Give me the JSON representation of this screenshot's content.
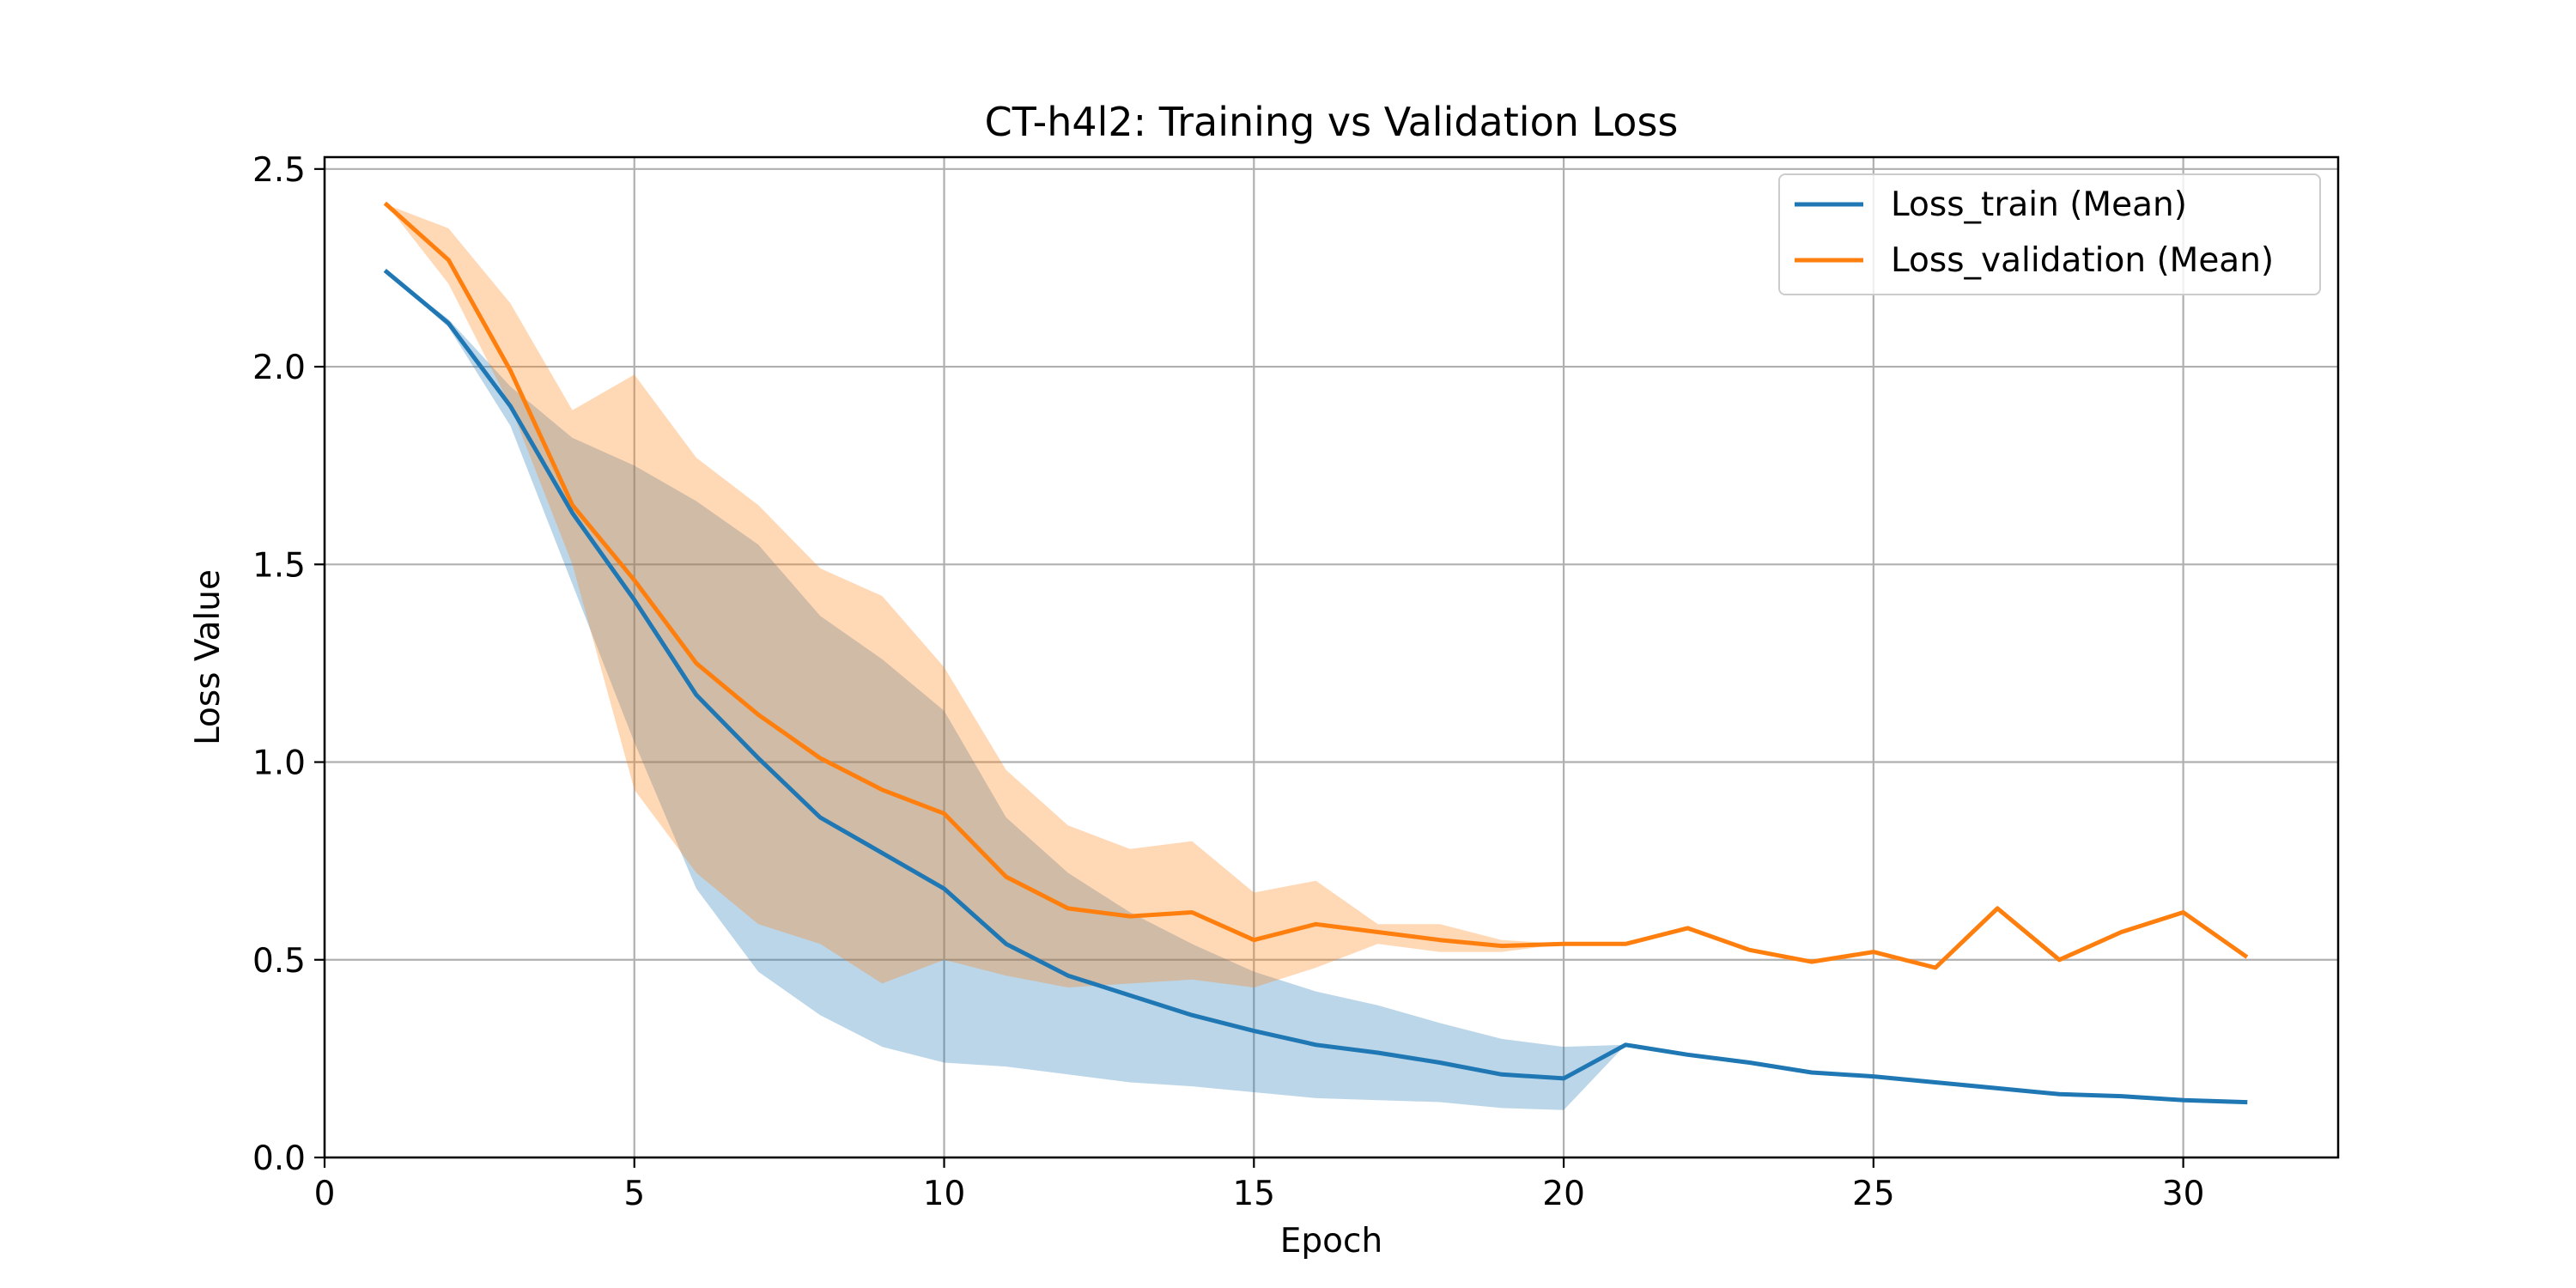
{
  "chart_data": {
    "type": "line",
    "title": "CT-h4l2: Training vs Validation Loss",
    "xlabel": "Epoch",
    "ylabel": "Loss Value",
    "xlim": [
      0,
      32.5
    ],
    "ylim": [
      0,
      2.53
    ],
    "xticks": [
      0,
      5,
      10,
      15,
      20,
      25,
      30
    ],
    "yticks": [
      0.0,
      0.5,
      1.0,
      1.5,
      2.0,
      2.5
    ],
    "xtick_labels": [
      "0",
      "5",
      "10",
      "15",
      "20",
      "25",
      "30"
    ],
    "ytick_labels": [
      "0.0",
      "0.5",
      "1.0",
      "1.5",
      "2.0",
      "2.5"
    ],
    "grid": true,
    "legend_position": "top-right",
    "series": [
      {
        "name": "Loss_train (Mean)",
        "color": "#1f77b4",
        "x": [
          1,
          2,
          3,
          4,
          5,
          6,
          7,
          8,
          9,
          10,
          11,
          12,
          13,
          14,
          15,
          16,
          17,
          18,
          19,
          20,
          21,
          22,
          23,
          24,
          25,
          26,
          27,
          28,
          29,
          30,
          31
        ],
        "values": [
          2.24,
          2.11,
          1.9,
          1.63,
          1.41,
          1.17,
          1.01,
          0.86,
          0.77,
          0.68,
          0.54,
          0.46,
          0.41,
          0.36,
          0.32,
          0.285,
          0.265,
          0.24,
          0.21,
          0.2,
          0.285,
          0.26,
          0.24,
          0.215,
          0.205,
          0.19,
          0.175,
          0.16,
          0.155,
          0.145,
          0.14
        ],
        "band_lower": [
          2.24,
          2.1,
          1.85,
          1.45,
          1.05,
          0.68,
          0.47,
          0.36,
          0.28,
          0.24,
          0.23,
          0.21,
          0.19,
          0.18,
          0.165,
          0.15,
          0.145,
          0.14,
          0.125,
          0.12,
          0.285
        ],
        "band_upper": [
          2.24,
          2.12,
          1.95,
          1.82,
          1.75,
          1.66,
          1.55,
          1.37,
          1.26,
          1.13,
          0.86,
          0.72,
          0.62,
          0.54,
          0.47,
          0.42,
          0.385,
          0.34,
          0.3,
          0.28,
          0.285
        ]
      },
      {
        "name": "Loss_validation (Mean)",
        "color": "#ff7f0e",
        "x": [
          1,
          2,
          3,
          4,
          5,
          6,
          7,
          8,
          9,
          10,
          11,
          12,
          13,
          14,
          15,
          16,
          17,
          18,
          19,
          20,
          21,
          22,
          23,
          24,
          25,
          26,
          27,
          28,
          29,
          30,
          31
        ],
        "values": [
          2.41,
          2.27,
          1.99,
          1.65,
          1.46,
          1.25,
          1.12,
          1.01,
          0.93,
          0.87,
          0.71,
          0.63,
          0.61,
          0.62,
          0.55,
          0.59,
          0.57,
          0.55,
          0.535,
          0.54,
          0.54,
          0.58,
          0.525,
          0.495,
          0.52,
          0.48,
          0.63,
          0.5,
          0.57,
          0.62,
          0.51
        ],
        "band_lower": [
          2.41,
          2.21,
          1.9,
          1.5,
          0.93,
          0.72,
          0.59,
          0.54,
          0.44,
          0.5,
          0.46,
          0.43,
          0.44,
          0.45,
          0.43,
          0.48,
          0.54,
          0.52,
          0.52,
          0.54
        ],
        "band_upper": [
          2.41,
          2.35,
          2.16,
          1.89,
          1.98,
          1.77,
          1.65,
          1.49,
          1.42,
          1.24,
          0.98,
          0.84,
          0.78,
          0.8,
          0.67,
          0.7,
          0.59,
          0.59,
          0.55,
          0.54
        ]
      }
    ]
  }
}
